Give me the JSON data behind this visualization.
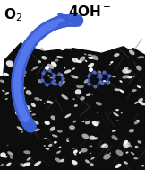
{
  "o2_label": "O$_2$",
  "oh_label": "4OH$^-$",
  "arrow_color": "#3b5fd4",
  "bg_color": "#ffffff",
  "label_fontsize": 11,
  "label_fontweight": "bold",
  "tube_color": "#0d0d0d",
  "adenine_bond_color": "#2244cc",
  "adenine_node_color": "#5566aa",
  "n_spots": 180,
  "spot_size_min": 1.5,
  "spot_size_max": 9.0,
  "n_lines": 60
}
